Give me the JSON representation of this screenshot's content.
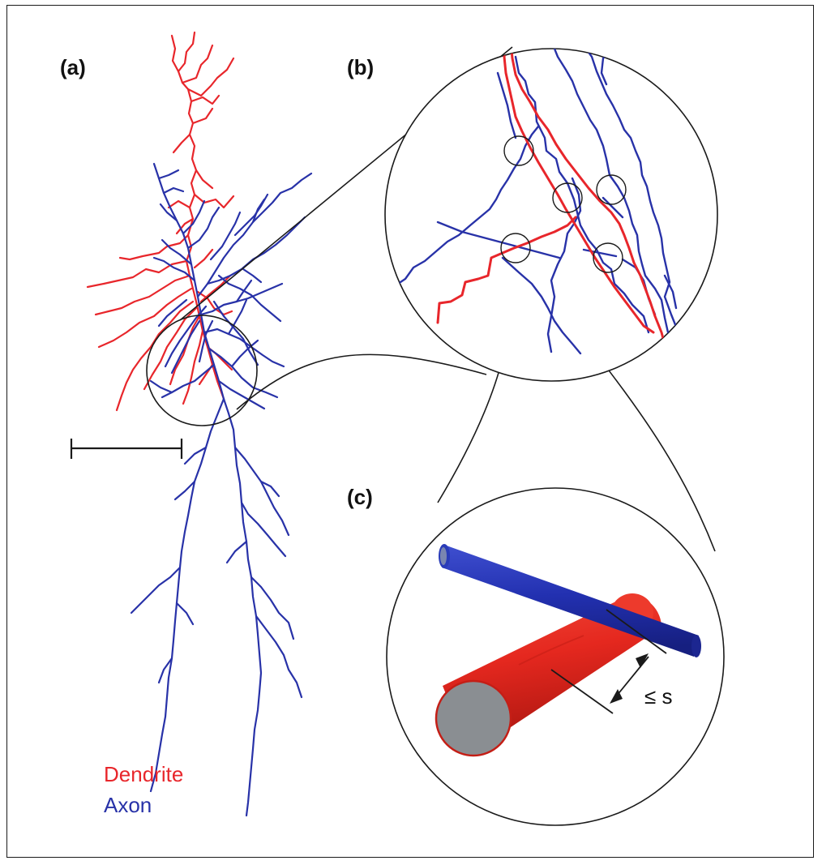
{
  "panels": {
    "a": "(a)",
    "b": "(b)",
    "c": "(c)"
  },
  "legend": {
    "dendrite": "Dendrite",
    "axon": "Axon"
  },
  "distance_label": "≤ s",
  "colors": {
    "dendrite": "#e8262b",
    "axon": "#2832a8",
    "outline": "#1a1a1a",
    "cylinder_cap": "#8a8e92"
  }
}
